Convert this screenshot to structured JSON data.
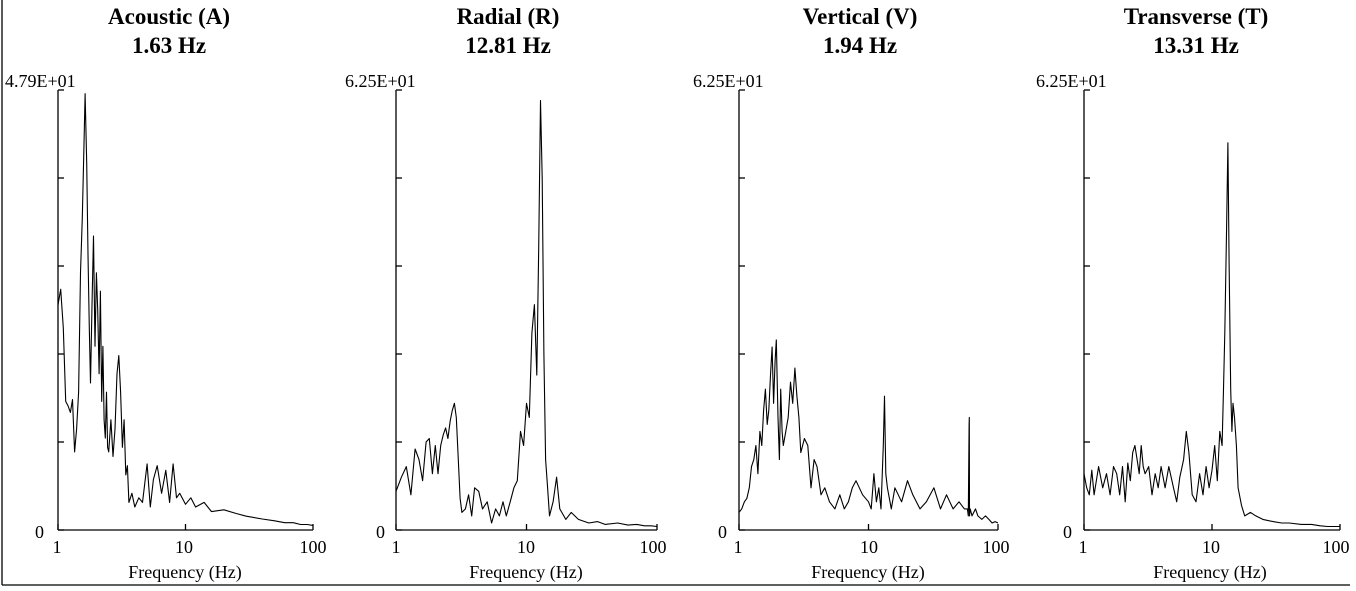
{
  "chart_data": [
    {
      "type": "line",
      "title": "Acoustic (A)",
      "subtitle": "1.63 Hz",
      "xlabel": "Frequency (Hz)",
      "ylabel": "",
      "ymax_label": "4.79E+01",
      "ymin_label": "0",
      "xscale": "log",
      "xlim": [
        1,
        100
      ],
      "ylim": [
        0,
        47.9
      ],
      "xticks": [
        "1",
        "10",
        "100"
      ],
      "series": [
        {
          "x": [
            1.0,
            1.05,
            1.1,
            1.15,
            1.2,
            1.25,
            1.3,
            1.35,
            1.4,
            1.45,
            1.5,
            1.55,
            1.6,
            1.63,
            1.68,
            1.72,
            1.76,
            1.8,
            1.85,
            1.9,
            1.95,
            2.0,
            2.05,
            2.1,
            2.15,
            2.2,
            2.25,
            2.3,
            2.35,
            2.4,
            2.45,
            2.5,
            2.6,
            2.7,
            2.8,
            2.9,
            3.0,
            3.1,
            3.2,
            3.3,
            3.4,
            3.5,
            3.6,
            3.8,
            4.0,
            4.3,
            4.6,
            5.0,
            5.3,
            5.6,
            6.0,
            6.5,
            7.0,
            7.5,
            8.0,
            8.5,
            9.0,
            10.0,
            11.0,
            12.0,
            14.0,
            16.0,
            20.0,
            25.0,
            30.0,
            40.0,
            50.0,
            60.0,
            70.0,
            80.0,
            90.0,
            100.0
          ],
          "y": [
            24.5,
            26.2,
            22.0,
            14.0,
            13.5,
            12.8,
            14.2,
            8.5,
            11.0,
            15.0,
            28.0,
            34.0,
            42.0,
            47.5,
            40.0,
            30.0,
            22.0,
            16.0,
            25.0,
            32.0,
            20.0,
            28.0,
            24.0,
            17.0,
            26.0,
            14.0,
            20.0,
            12.0,
            10.0,
            15.0,
            9.0,
            8.5,
            12.0,
            8.0,
            11.0,
            17.0,
            19.0,
            15.0,
            9.0,
            12.0,
            6.0,
            7.0,
            3.0,
            4.0,
            2.5,
            3.5,
            3.0,
            7.2,
            2.5,
            5.5,
            7.0,
            4.0,
            6.5,
            3.0,
            7.2,
            3.5,
            4.0,
            2.8,
            3.5,
            2.5,
            3.0,
            2.0,
            2.2,
            1.8,
            1.5,
            1.2,
            1.0,
            0.8,
            0.8,
            0.6,
            0.6,
            0.5
          ]
        }
      ]
    },
    {
      "type": "line",
      "title": "Radial (R)",
      "subtitle": "12.81 Hz",
      "xlabel": "Frequency (Hz)",
      "ylabel": "",
      "ymax_label": "6.25E+01",
      "ymin_label": "0",
      "xscale": "log",
      "xlim": [
        1,
        100
      ],
      "ylim": [
        0,
        62.5
      ],
      "xticks": [
        "1",
        "10",
        "100"
      ],
      "series": [
        {
          "x": [
            1.0,
            1.1,
            1.2,
            1.3,
            1.4,
            1.5,
            1.6,
            1.7,
            1.8,
            1.9,
            2.0,
            2.1,
            2.2,
            2.3,
            2.4,
            2.5,
            2.6,
            2.7,
            2.8,
            2.9,
            3.0,
            3.1,
            3.2,
            3.4,
            3.6,
            3.8,
            4.0,
            4.3,
            4.6,
            5.0,
            5.4,
            5.8,
            6.2,
            6.6,
            7.0,
            7.5,
            8.0,
            8.5,
            9.0,
            9.5,
            10.0,
            10.5,
            11.0,
            11.5,
            12.0,
            12.4,
            12.81,
            13.2,
            13.6,
            14.0,
            14.5,
            15.0,
            16.0,
            17.0,
            18.0,
            20.0,
            22.0,
            25.0,
            30.0,
            35.0,
            40.0,
            50.0,
            60.0,
            70.0,
            80.0,
            90.0,
            100.0
          ],
          "y": [
            5.5,
            7.5,
            9.0,
            5.0,
            11.5,
            10.0,
            7.0,
            12.5,
            13.0,
            8.0,
            12.0,
            8.0,
            12.0,
            13.5,
            14.5,
            13.0,
            15.5,
            17.0,
            18.0,
            16.0,
            10.0,
            4.5,
            2.5,
            3.0,
            5.0,
            2.0,
            6.0,
            5.5,
            3.0,
            4.0,
            1.0,
            3.0,
            2.0,
            4.0,
            2.0,
            4.0,
            6.0,
            7.0,
            14.0,
            12.0,
            18.0,
            16.0,
            28.0,
            32.0,
            22.0,
            40.0,
            61.0,
            50.0,
            25.0,
            10.0,
            6.0,
            2.0,
            4.0,
            7.5,
            3.0,
            1.5,
            2.5,
            1.5,
            1.0,
            1.2,
            0.8,
            1.0,
            0.7,
            0.8,
            0.6,
            0.6,
            0.5
          ]
        }
      ]
    },
    {
      "type": "line",
      "title": "Vertical (V)",
      "subtitle": "1.94 Hz",
      "xlabel": "Frequency (Hz)",
      "ylabel": "",
      "ymax_label": "6.25E+01",
      "ymin_label": "0",
      "xscale": "log",
      "xlim": [
        1,
        100
      ],
      "ylim": [
        0,
        62.5
      ],
      "xticks": [
        "1",
        "10",
        "100"
      ],
      "series": [
        {
          "x": [
            1.0,
            1.05,
            1.1,
            1.15,
            1.2,
            1.25,
            1.3,
            1.35,
            1.4,
            1.45,
            1.5,
            1.55,
            1.6,
            1.65,
            1.7,
            1.75,
            1.8,
            1.85,
            1.9,
            1.94,
            2.0,
            2.05,
            2.1,
            2.15,
            2.2,
            2.3,
            2.4,
            2.5,
            2.6,
            2.7,
            2.8,
            2.9,
            3.0,
            3.2,
            3.4,
            3.6,
            3.8,
            4.0,
            4.3,
            4.6,
            5.0,
            5.5,
            6.0,
            6.5,
            7.0,
            7.5,
            8.0,
            9.0,
            10.0,
            10.5,
            11.0,
            11.5,
            12.0,
            12.5,
            13.0,
            13.3,
            13.6,
            14.0,
            15.0,
            16.0,
            18.0,
            20.0,
            22.0,
            25.0,
            28.0,
            32.0,
            36.0,
            40.0,
            45.0,
            50.0,
            55.0,
            58.0,
            59.0,
            59.8,
            60.0,
            60.2,
            61.0,
            63.0,
            67.0,
            70.0,
            75.0,
            80.0,
            85.0,
            90.0,
            95.0,
            100.0
          ],
          "y": [
            2.5,
            3.0,
            4.0,
            4.5,
            6.0,
            9.0,
            10.0,
            12.0,
            8.0,
            14.0,
            12.0,
            17.0,
            20.0,
            15.0,
            17.0,
            22.0,
            26.0,
            18.0,
            24.0,
            27.0,
            16.0,
            10.0,
            20.0,
            14.0,
            12.0,
            14.0,
            16.0,
            21.0,
            18.0,
            23.0,
            19.0,
            16.0,
            11.0,
            13.0,
            12.0,
            6.0,
            10.0,
            9.0,
            5.0,
            6.0,
            4.0,
            3.0,
            5.0,
            3.0,
            4.0,
            6.0,
            7.0,
            5.0,
            4.0,
            3.0,
            8.0,
            4.0,
            6.0,
            3.0,
            12.0,
            19.0,
            8.0,
            6.0,
            3.0,
            6.0,
            4.0,
            7.0,
            5.0,
            3.0,
            4.0,
            6.0,
            3.0,
            5.0,
            3.0,
            4.0,
            3.0,
            3.0,
            2.0,
            15.0,
            16.0,
            2.0,
            3.0,
            2.0,
            3.0,
            2.0,
            1.5,
            2.0,
            1.5,
            1.0,
            1.2,
            1.0
          ]
        }
      ]
    },
    {
      "type": "line",
      "title": "Transverse (T)",
      "subtitle": "13.31 Hz",
      "xlabel": "Frequency (Hz)",
      "ylabel": "",
      "ymax_label": "6.25E+01",
      "ymin_label": "0",
      "xscale": "log",
      "xlim": [
        1,
        100
      ],
      "ylim": [
        0,
        62.5
      ],
      "xticks": [
        "1",
        "10",
        "100"
      ],
      "series": [
        {
          "x": [
            1.0,
            1.05,
            1.1,
            1.15,
            1.2,
            1.3,
            1.4,
            1.5,
            1.6,
            1.7,
            1.8,
            1.9,
            2.0,
            2.1,
            2.2,
            2.3,
            2.4,
            2.5,
            2.6,
            2.7,
            2.8,
            2.9,
            3.0,
            3.2,
            3.4,
            3.6,
            3.8,
            4.0,
            4.3,
            4.6,
            5.0,
            5.3,
            5.6,
            6.0,
            6.3,
            6.6,
            7.0,
            7.5,
            8.0,
            8.5,
            9.0,
            9.5,
            10.0,
            10.5,
            11.0,
            11.5,
            12.0,
            12.3,
            12.6,
            13.0,
            13.31,
            13.6,
            14.0,
            14.3,
            14.6,
            15.0,
            15.5,
            16.0,
            17.0,
            18.0,
            20.0,
            22.0,
            25.0,
            30.0,
            35.0,
            40.0,
            50.0,
            60.0,
            70.0,
            80.0,
            90.0,
            100.0
          ],
          "y": [
            8.0,
            6.0,
            5.0,
            8.5,
            5.0,
            9.0,
            6.0,
            8.0,
            5.0,
            9.0,
            8.0,
            5.0,
            9.0,
            4.0,
            9.5,
            7.0,
            11.0,
            12.0,
            10.0,
            8.0,
            12.0,
            9.0,
            8.0,
            9.0,
            5.0,
            8.0,
            6.0,
            9.0,
            6.0,
            9.0,
            6.0,
            4.0,
            7.5,
            10.0,
            14.0,
            11.0,
            5.0,
            4.0,
            8.0,
            5.0,
            9.0,
            6.0,
            8.5,
            12.0,
            7.0,
            14.0,
            12.0,
            20.0,
            28.0,
            43.0,
            55.0,
            38.0,
            20.0,
            14.0,
            18.0,
            16.0,
            12.0,
            6.0,
            3.5,
            2.0,
            2.5,
            2.0,
            1.5,
            1.2,
            1.0,
            1.0,
            0.8,
            0.8,
            0.6,
            0.5,
            0.5,
            0.5
          ]
        }
      ]
    }
  ]
}
